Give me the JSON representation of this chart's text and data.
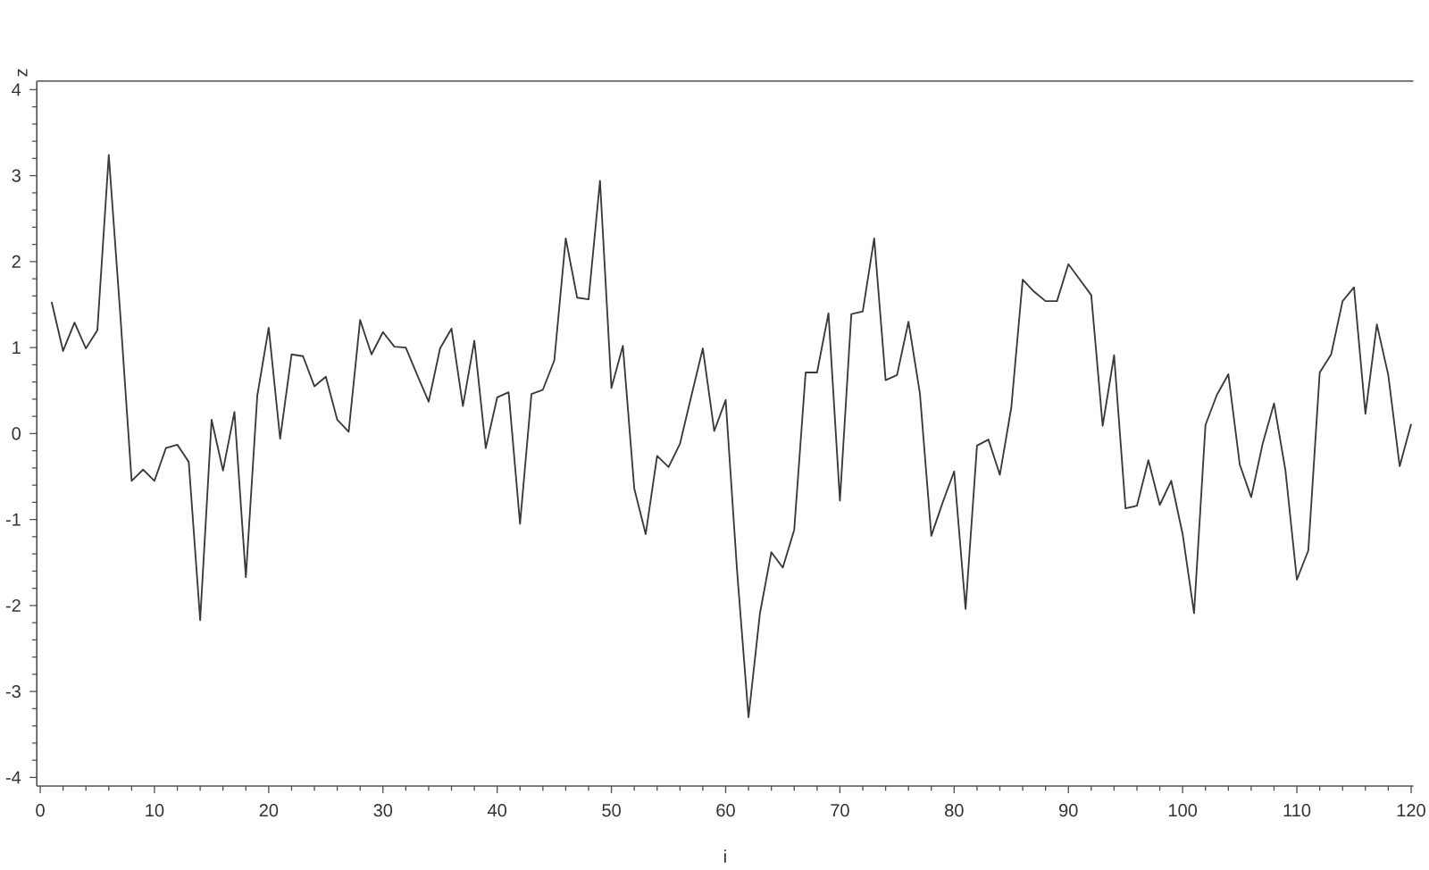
{
  "chart_data": {
    "type": "line",
    "xlabel": "i",
    "ylabel": "z",
    "x": [
      1,
      2,
      3,
      4,
      5,
      6,
      7,
      8,
      9,
      10,
      11,
      12,
      13,
      14,
      15,
      16,
      17,
      18,
      19,
      20,
      21,
      22,
      23,
      24,
      25,
      26,
      27,
      28,
      29,
      30,
      31,
      32,
      33,
      34,
      35,
      36,
      37,
      38,
      39,
      40,
      41,
      42,
      43,
      44,
      45,
      46,
      47,
      48,
      49,
      50,
      51,
      52,
      53,
      54,
      55,
      56,
      57,
      58,
      59,
      60,
      61,
      62,
      63,
      64,
      65,
      66,
      67,
      68,
      69,
      70,
      71,
      72,
      73,
      74,
      75,
      76,
      77,
      78,
      79,
      80,
      81,
      82,
      83,
      84,
      85,
      86,
      87,
      88,
      89,
      90,
      91,
      92,
      93,
      94,
      95,
      96,
      97,
      98,
      99,
      100,
      101,
      102,
      103,
      104,
      105,
      106,
      107,
      108,
      109,
      110,
      111,
      112,
      113,
      114,
      115,
      116,
      117,
      118,
      119,
      120
    ],
    "values": [
      1.53,
      0.96,
      1.29,
      0.99,
      1.2,
      3.24,
      1.4,
      -0.55,
      -0.42,
      -0.55,
      -0.17,
      -0.13,
      -0.33,
      -2.17,
      0.16,
      -0.43,
      0.25,
      -1.67,
      0.44,
      1.23,
      -0.06,
      0.92,
      0.9,
      0.55,
      0.66,
      0.16,
      0.02,
      1.32,
      0.92,
      1.18,
      1.01,
      1.0,
      0.68,
      0.37,
      0.99,
      1.22,
      0.32,
      1.08,
      -0.17,
      0.42,
      0.48,
      -1.05,
      0.46,
      0.51,
      0.85,
      2.27,
      1.58,
      1.56,
      2.94,
      0.53,
      1.02,
      -0.64,
      -1.17,
      -0.26,
      -0.39,
      -0.12,
      0.44,
      0.99,
      0.03,
      0.39,
      -1.6,
      -3.3,
      -2.09,
      -1.38,
      -1.56,
      -1.12,
      0.71,
      0.71,
      1.4,
      -0.78,
      1.39,
      1.42,
      2.27,
      0.62,
      0.68,
      1.3,
      0.47,
      -1.19,
      -0.8,
      -0.44,
      -2.04,
      -0.14,
      -0.07,
      -0.48,
      0.3,
      1.79,
      1.65,
      1.54,
      1.54,
      1.97,
      1.79,
      1.61,
      0.09,
      0.91,
      -0.87,
      -0.84,
      -0.31,
      -0.83,
      -0.55,
      -1.17,
      -2.09,
      0.1,
      0.45,
      0.69,
      -0.36,
      -0.74,
      -0.12,
      0.35,
      -0.43,
      -1.7,
      -1.36,
      0.71,
      0.92,
      1.54,
      1.7,
      0.23,
      1.27,
      0.68,
      -0.38,
      0.11
    ],
    "color": "#3a3a3a",
    "line_style": "solid",
    "xlim": [
      -0.3,
      120.2
    ],
    "ylim": [
      -4.1,
      4.1
    ],
    "xticks": [
      0,
      10,
      20,
      30,
      40,
      50,
      60,
      70,
      80,
      90,
      100,
      110,
      120
    ],
    "yticks": [
      -4,
      -3,
      -2,
      -1,
      0,
      1,
      2,
      3,
      4
    ]
  }
}
